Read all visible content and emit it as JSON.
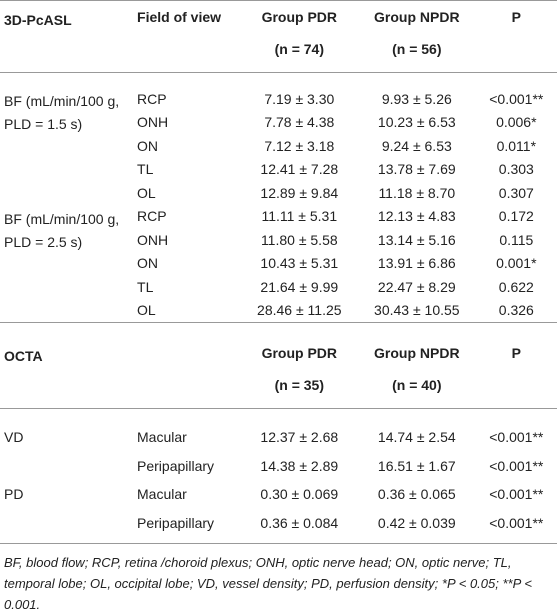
{
  "sections": [
    {
      "title": "3D-PcASL",
      "field": "Field of view",
      "columns": [
        "Group PDR",
        "Group NPDR",
        "P"
      ],
      "counts": [
        "(n = 74)",
        "(n = 56)"
      ],
      "groups": [
        {
          "label": "BF (mL/min/100 g, PLD = 1.5 s)",
          "rows": [
            [
              "RCP",
              "7.19 ± 3.30",
              "9.93 ± 5.26",
              "<0.001**"
            ],
            [
              "ONH",
              "7.78 ± 4.38",
              "10.23 ± 6.53",
              "0.006*"
            ],
            [
              "ON",
              "7.12 ± 3.18",
              "9.24 ± 6.53",
              "0.011*"
            ],
            [
              "TL",
              "12.41 ± 7.28",
              "13.78 ± 7.69",
              "0.303"
            ],
            [
              "OL",
              "12.89 ± 9.84",
              "11.18 ± 8.70",
              "0.307"
            ]
          ]
        },
        {
          "label": "BF (mL/min/100 g, PLD = 2.5 s)",
          "rows": [
            [
              "RCP",
              "11.11 ± 5.31",
              "12.13 ± 4.83",
              "0.172"
            ],
            [
              "ONH",
              "11.80 ± 5.58",
              "13.14 ± 5.16",
              "0.115"
            ],
            [
              "ON",
              "10.43 ± 5.31",
              "13.91 ± 6.86",
              "0.001*"
            ],
            [
              "TL",
              "21.64 ± 9.99",
              "22.47 ± 8.29",
              "0.622"
            ],
            [
              "OL",
              "28.46 ± 11.25",
              "30.43 ± 10.55",
              "0.326"
            ]
          ]
        }
      ]
    },
    {
      "title": "OCTA",
      "columns": [
        "Group PDR",
        "Group NPDR",
        "P"
      ],
      "counts": [
        "(n = 35)",
        "(n = 40)"
      ],
      "groups": [
        {
          "label": "VD",
          "rows": [
            [
              "Macular",
              "12.37 ± 2.68",
              "14.74 ± 2.54",
              "<0.001**"
            ],
            [
              "Peripapillary",
              "14.38 ± 2.89",
              "16.51 ± 1.67",
              "<0.001**"
            ]
          ]
        },
        {
          "label": "PD",
          "rows": [
            [
              "Macular",
              "0.30 ± 0.069",
              "0.36 ± 0.065",
              "<0.001**"
            ],
            [
              "Peripapillary",
              "0.36 ± 0.084",
              "0.42 ± 0.039",
              "<0.001**"
            ]
          ]
        }
      ]
    }
  ],
  "footnote": "BF, blood flow; RCP, retina /choroid plexus; ONH, optic nerve head; ON, optic nerve; TL, temporal lobe; OL, occipital lobe; VD, vessel density; PD, perfusion density; *P < 0.05; **P < 0.001."
}
